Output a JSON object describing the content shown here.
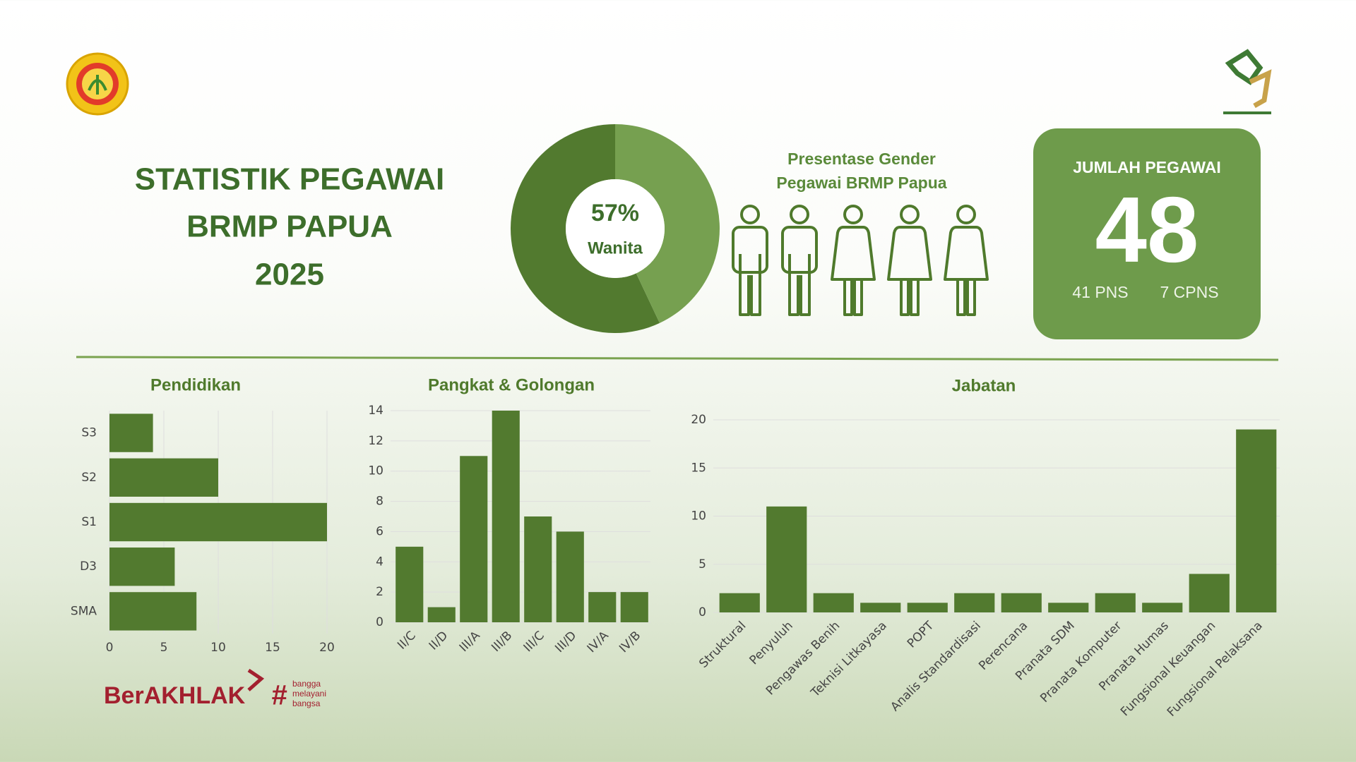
{
  "header": {
    "title": [
      "STATISTIK PEGAWAI",
      "BRMP PAPUA",
      "2025"
    ]
  },
  "gender": {
    "caption": [
      "Presentase Gender",
      "Pegawai BRMP Papua"
    ]
  },
  "total": {
    "label": "JUMLAH PEGAWAI",
    "value": 48,
    "breakdown": [
      "41 PNS",
      "7 CPNS"
    ]
  },
  "footer": {
    "brand": "BerAKHLAK",
    "tagline": [
      "bangga",
      "melayani",
      "bangsa"
    ]
  },
  "chart_data": [
    {
      "type": "pie",
      "values": [
        57,
        43
      ],
      "value_labels": [
        "57%",
        null
      ],
      "labels": [
        "Wanita",
        null
      ],
      "colors": [
        "#527a2f",
        "#76a050"
      ]
    },
    {
      "type": "bar",
      "orientation": "horizontal",
      "title": "Pendidikan",
      "categories": [
        "S3",
        "S2",
        "S1",
        "D3",
        "SMA"
      ],
      "values": [
        4,
        10,
        20,
        6,
        8
      ],
      "color": "#527a2f",
      "xlim": [
        0,
        20
      ],
      "xticks": [
        0,
        5,
        10,
        15,
        20
      ],
      "grid": true
    },
    {
      "type": "bar",
      "orientation": "vertical",
      "title": "Pangkat & Golongan",
      "categories": [
        "II/C",
        "II/D",
        "III/A",
        "III/B",
        "III/C",
        "III/D",
        "IV/A",
        "IV/B"
      ],
      "values": [
        5,
        1,
        11,
        14,
        7,
        6,
        2,
        2
      ],
      "color": "#527a2f",
      "ylim": [
        0,
        14
      ],
      "yticks": [
        0,
        2,
        4,
        6,
        8,
        10,
        12,
        14
      ],
      "grid": true
    },
    {
      "type": "bar",
      "orientation": "vertical",
      "title": "Jabatan",
      "categories": [
        "Struktural",
        "Penyuluh",
        "Pengawas Benih",
        "Teknisi Litkayasa",
        "POPT",
        "Analis Standardisasi",
        "Perencana",
        "Pranata SDM",
        "Pranata Komputer",
        "Pranata Humas",
        "Fungsional Keuangan",
        "Fungsional Pelaksana"
      ],
      "values": [
        2,
        11,
        2,
        1,
        1,
        2,
        2,
        1,
        2,
        1,
        4,
        19
      ],
      "color": "#527a2f",
      "ylim": [
        0,
        20
      ],
      "yticks": [
        0,
        5,
        10,
        15,
        20
      ],
      "grid": true
    }
  ]
}
